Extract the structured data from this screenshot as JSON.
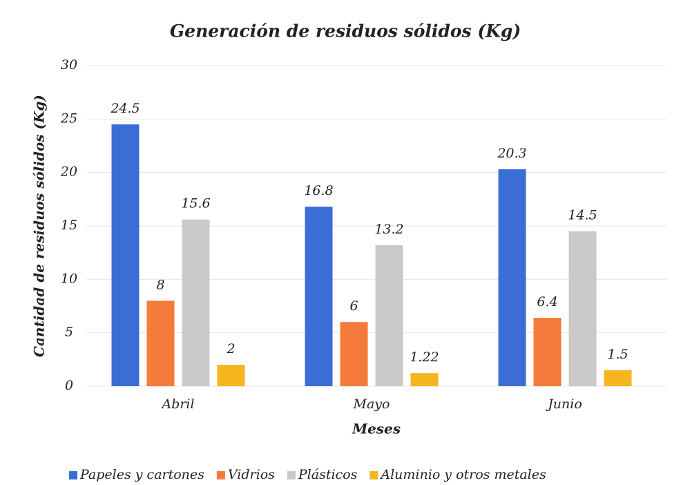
{
  "chart_data": {
    "type": "bar",
    "title": "Generación de residuos sólidos (Kg)",
    "x_label": "Meses",
    "y_label": "Cantidad de residuos sólidos (Kg)",
    "categories": [
      "Abril",
      "Mayo",
      "Junio"
    ],
    "series": [
      {
        "name": "Papeles y cartones",
        "color": "#3a6ed6",
        "values": [
          24.5,
          16.8,
          20.3
        ]
      },
      {
        "name": "Vidrios",
        "color": "#f47b3a",
        "values": [
          8,
          6,
          6.4
        ]
      },
      {
        "name": "Plásticos",
        "color": "#c9c9c9",
        "values": [
          15.6,
          13.2,
          14.5
        ]
      },
      {
        "name": "Aluminio y otros metales",
        "color": "#f5b51e",
        "values": [
          2,
          1.22,
          1.5
        ]
      }
    ],
    "ylim": [
      0,
      30
    ],
    "yticks": [
      0,
      5,
      10,
      15,
      20,
      25,
      30
    ],
    "grid": true,
    "legend": "bottom"
  }
}
